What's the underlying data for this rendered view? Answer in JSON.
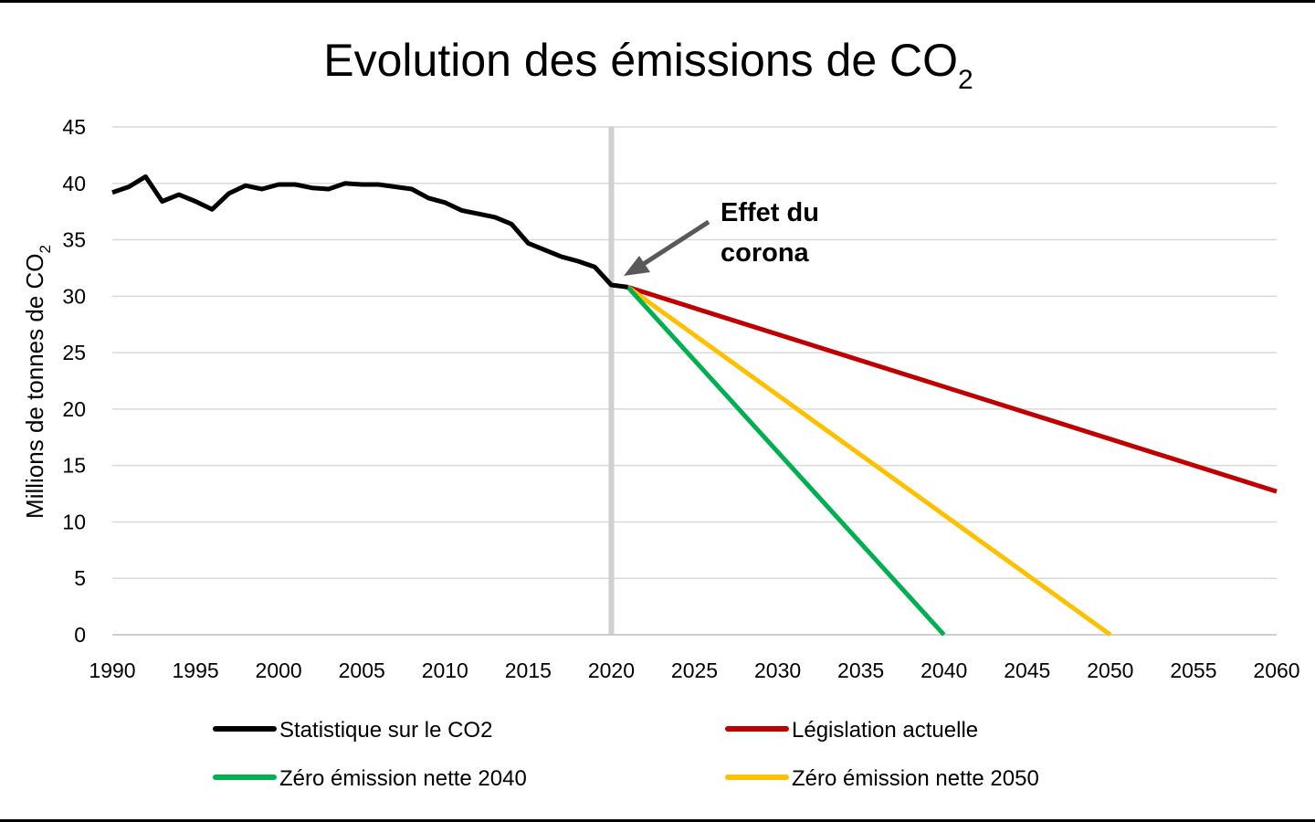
{
  "chart_data": {
    "type": "line",
    "title": "Evolution des émissions de CO",
    "title_subscript": "2",
    "xlabel": "",
    "ylabel": "Millions de tonnes de CO",
    "ylabel_subscript": "2",
    "xlim": [
      1990,
      2060
    ],
    "ylim": [
      0,
      45
    ],
    "xticks": [
      1990,
      1995,
      2000,
      2005,
      2010,
      2015,
      2020,
      2025,
      2030,
      2035,
      2040,
      2045,
      2050,
      2055,
      2060
    ],
    "yticks": [
      0,
      5,
      10,
      15,
      20,
      25,
      30,
      35,
      40,
      45
    ],
    "grid": true,
    "legend_position": "bottom",
    "vertical_marker_x": 2020,
    "annotation": {
      "lines": [
        "Effet du",
        "corona"
      ],
      "target": [
        2020.8,
        31.0
      ]
    },
    "series": [
      {
        "name": "Statistique sur le CO2",
        "color": "#000000",
        "points": [
          [
            1990,
            39.2
          ],
          [
            1991,
            39.7
          ],
          [
            1992,
            40.6
          ],
          [
            1993,
            38.4
          ],
          [
            1994,
            39.0
          ],
          [
            1995,
            38.4
          ],
          [
            1996,
            37.7
          ],
          [
            1997,
            39.1
          ],
          [
            1998,
            39.8
          ],
          [
            1999,
            39.5
          ],
          [
            2000,
            39.9
          ],
          [
            2001,
            39.9
          ],
          [
            2002,
            39.6
          ],
          [
            2003,
            39.5
          ],
          [
            2004,
            40.0
          ],
          [
            2005,
            39.9
          ],
          [
            2006,
            39.9
          ],
          [
            2007,
            39.7
          ],
          [
            2008,
            39.5
          ],
          [
            2009,
            38.7
          ],
          [
            2010,
            38.3
          ],
          [
            2011,
            37.6
          ],
          [
            2012,
            37.3
          ],
          [
            2013,
            37.0
          ],
          [
            2014,
            36.4
          ],
          [
            2015,
            34.7
          ],
          [
            2016,
            34.1
          ],
          [
            2017,
            33.5
          ],
          [
            2018,
            33.1
          ],
          [
            2019,
            32.6
          ],
          [
            2020,
            31.0
          ],
          [
            2021,
            30.8
          ]
        ]
      },
      {
        "name": "Législation actuelle",
        "color": "#c00000",
        "points": [
          [
            2021,
            30.8
          ],
          [
            2060,
            12.7
          ]
        ]
      },
      {
        "name": "Zéro émission nette 2040",
        "color": "#00b050",
        "points": [
          [
            2021,
            30.8
          ],
          [
            2040,
            0
          ]
        ]
      },
      {
        "name": "Zéro émission nette 2050",
        "color": "#ffc000",
        "points": [
          [
            2021,
            30.8
          ],
          [
            2050,
            0
          ]
        ]
      }
    ]
  }
}
